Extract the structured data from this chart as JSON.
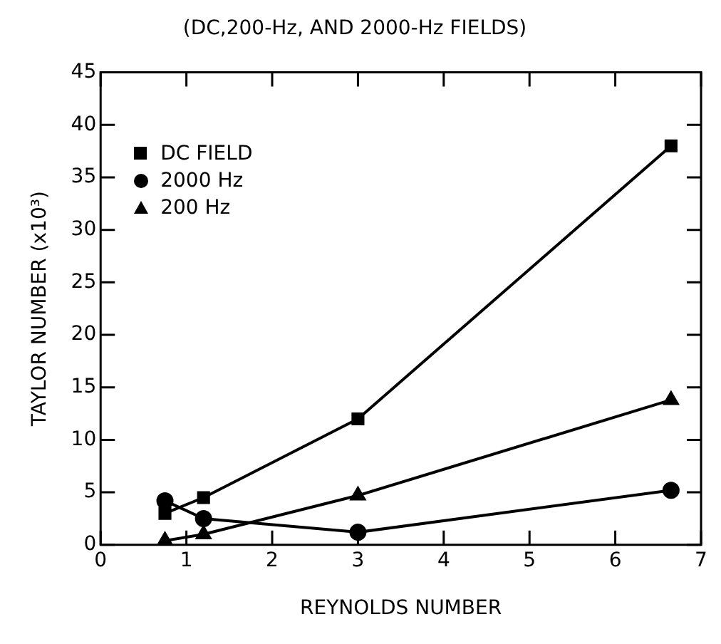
{
  "chart_data": {
    "type": "line",
    "title": "(DC,200-Hz, AND 2000-Hz FIELDS)",
    "xlabel": "REYNOLDS NUMBER",
    "ylabel": "TAYLOR NUMBER (x10³)",
    "x": [
      0.75,
      1.2,
      3.0,
      6.65
    ],
    "series": [
      {
        "name": "DC FIELD",
        "color": "#000000",
        "marker": "square",
        "values": [
          3,
          4.5,
          12,
          38
        ]
      },
      {
        "name": "2000 Hz",
        "color": "#000000",
        "marker": "circle",
        "values": [
          4.2,
          2.5,
          1.2,
          5.2
        ]
      },
      {
        "name": "200 Hz",
        "color": "#000000",
        "marker": "triangle",
        "values": [
          0.4,
          1.0,
          4.7,
          13.8
        ]
      }
    ],
    "xlim": [
      0,
      7
    ],
    "xticks": [
      0,
      1,
      2,
      3,
      4,
      5,
      6,
      7
    ],
    "ylim": [
      0,
      45
    ],
    "yticks": [
      0,
      5,
      10,
      15,
      20,
      25,
      30,
      35,
      40,
      45
    ],
    "grid": false,
    "legend": "top left",
    "line_style": "solid"
  }
}
